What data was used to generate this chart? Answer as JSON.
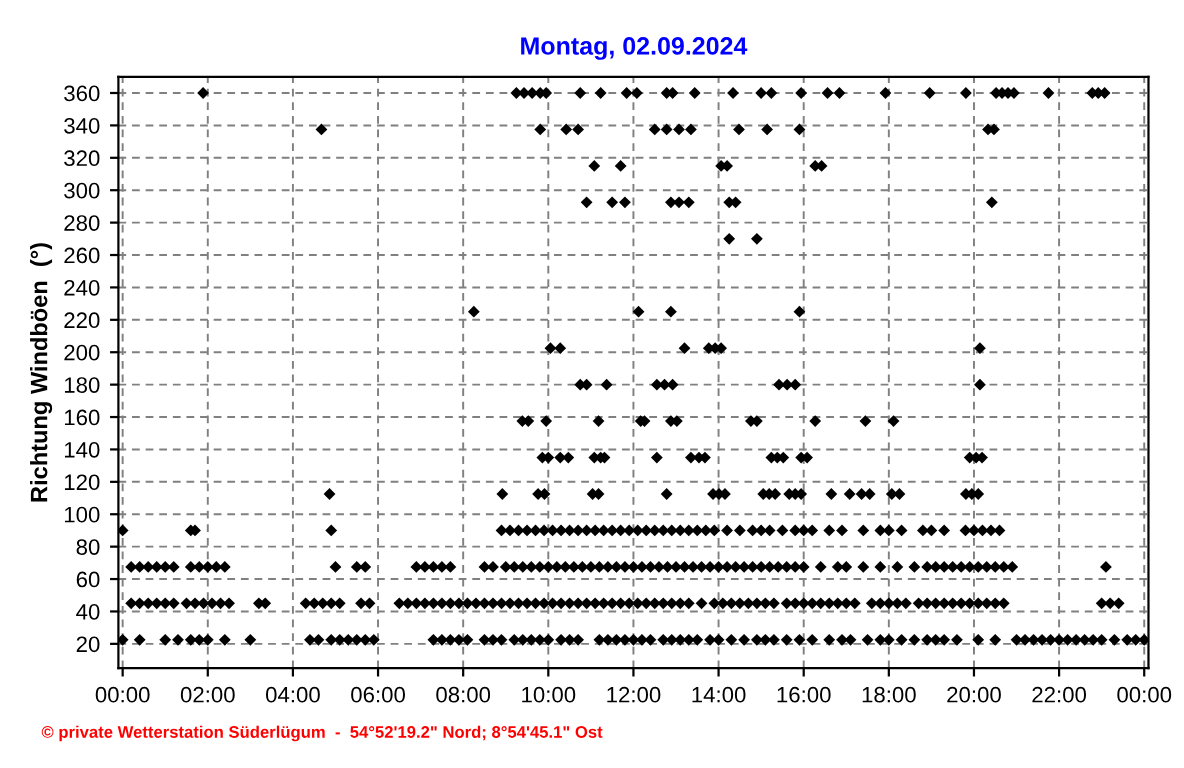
{
  "chart_data": {
    "type": "scatter",
    "title": "Montag, 02.09.2024",
    "ylabel": "Richtung Windböen  (°)",
    "annotations": [
      "© private Wetterstation Süderlügum  -  54°52'19.2\" Nord; 8°54'45.1\" Ost"
    ],
    "xlim": [
      -0.1,
      24.1
    ],
    "ylim": [
      5,
      370
    ],
    "xticks": [
      {
        "value": 0,
        "label": "00:00"
      },
      {
        "value": 2,
        "label": "02:00"
      },
      {
        "value": 4,
        "label": "04:00"
      },
      {
        "value": 6,
        "label": "06:00"
      },
      {
        "value": 8,
        "label": "08:00"
      },
      {
        "value": 10,
        "label": "10:00"
      },
      {
        "value": 12,
        "label": "12:00"
      },
      {
        "value": 14,
        "label": "14:00"
      },
      {
        "value": 16,
        "label": "16:00"
      },
      {
        "value": 18,
        "label": "18:00"
      },
      {
        "value": 20,
        "label": "20:00"
      },
      {
        "value": 22,
        "label": "22:00"
      },
      {
        "value": 24,
        "label": "00:00"
      }
    ],
    "yticks": [
      20,
      40,
      60,
      80,
      100,
      120,
      140,
      160,
      180,
      200,
      220,
      240,
      260,
      280,
      300,
      320,
      340,
      360
    ],
    "grid": true,
    "marker": "diamond",
    "series": [
      {
        "color": "#000000",
        "x": [
          1.89,
          9.25,
          9.43,
          9.62,
          9.81,
          9.95,
          10.75,
          11.23,
          11.84,
          12.08,
          12.78,
          12.92,
          13.44,
          14.34,
          15.0,
          15.24,
          15.94,
          16.56,
          16.84,
          17.92,
          18.96,
          19.81,
          20.52,
          20.66,
          20.8,
          20.94,
          21.75,
          22.78,
          22.92,
          23.07
        ],
        "values": [
          360,
          360,
          360,
          360,
          360,
          360,
          360,
          360,
          360,
          360,
          360,
          360,
          360,
          360,
          360,
          360,
          360,
          360,
          360,
          360,
          360,
          360,
          360,
          360,
          360,
          360,
          360,
          360,
          360,
          360
        ]
      },
      {
        "color": "#000000",
        "x": [
          4.67,
          9.81,
          10.42,
          10.7,
          12.5,
          12.78,
          13.07,
          13.35,
          14.48,
          15.14,
          15.9,
          20.33,
          20.47
        ],
        "values": [
          337.5,
          337.5,
          337.5,
          337.5,
          337.5,
          337.5,
          337.5,
          337.5,
          337.5,
          337.5,
          337.5,
          337.5,
          337.5
        ]
      },
      {
        "color": "#000000",
        "x": [
          11.08,
          11.7,
          14.06,
          14.2,
          16.27,
          16.42
        ],
        "values": [
          315,
          315,
          315,
          315,
          315,
          315
        ]
      },
      {
        "color": "#000000",
        "x": [
          10.9,
          11.5,
          11.8,
          12.88,
          13.07,
          13.3,
          14.25,
          14.4,
          20.42
        ],
        "values": [
          292.5,
          292.5,
          292.5,
          292.5,
          292.5,
          292.5,
          292.5,
          292.5,
          292.5
        ]
      },
      {
        "color": "#000000",
        "x": [
          14.25,
          14.9
        ],
        "values": [
          270,
          270
        ]
      },
      {
        "color": "#000000",
        "x": [
          8.25,
          12.12,
          12.88,
          15.9
        ],
        "values": [
          225,
          225,
          225,
          225
        ]
      },
      {
        "color": "#000000",
        "x": [
          10.05,
          10.28,
          13.2,
          13.77,
          13.92,
          14.06,
          20.14
        ],
        "values": [
          202.5,
          202.5,
          202.5,
          202.5,
          202.5,
          202.5,
          202.5
        ]
      },
      {
        "color": "#000000",
        "x": [
          10.75,
          10.9,
          11.37,
          12.55,
          12.73,
          12.92,
          15.42,
          15.61,
          15.8,
          20.14
        ],
        "values": [
          180,
          180,
          180,
          180,
          180,
          180,
          180,
          180,
          180,
          180
        ]
      },
      {
        "color": "#000000",
        "x": [
          9.39,
          9.53,
          9.95,
          11.18,
          12.17,
          12.26,
          12.88,
          13.02,
          14.76,
          14.9,
          16.27,
          17.45,
          18.11
        ],
        "values": [
          157.5,
          157.5,
          157.5,
          157.5,
          157.5,
          157.5,
          157.5,
          157.5,
          157.5,
          157.5,
          157.5,
          157.5,
          157.5
        ]
      },
      {
        "color": "#000000",
        "x": [
          9.86,
          10.0,
          10.28,
          10.47,
          11.08,
          11.23,
          11.32,
          12.55,
          13.35,
          13.54,
          13.68,
          15.24,
          15.38,
          15.52,
          15.94,
          16.08,
          19.9,
          20.05,
          20.19
        ],
        "values": [
          135,
          135,
          135,
          135,
          135,
          135,
          135,
          135,
          135,
          135,
          135,
          135,
          135,
          135,
          135,
          135,
          135,
          135,
          135
        ]
      },
      {
        "color": "#000000",
        "x": [
          4.86,
          8.92,
          9.76,
          9.91,
          11.04,
          11.18,
          12.78,
          13.87,
          14.01,
          14.15,
          15.05,
          15.19,
          15.33,
          15.66,
          15.8,
          15.94,
          16.65,
          17.08,
          17.36,
          17.55,
          18.07,
          18.25,
          19.81,
          19.95,
          20.1
        ],
        "values": [
          112.5,
          112.5,
          112.5,
          112.5,
          112.5,
          112.5,
          112.5,
          112.5,
          112.5,
          112.5,
          112.5,
          112.5,
          112.5,
          112.5,
          112.5,
          112.5,
          112.5,
          112.5,
          112.5,
          112.5,
          112.5,
          112.5,
          112.5,
          112.5,
          112.5
        ]
      },
      {
        "color": "#000000",
        "x": [
          0.0,
          1.6,
          1.7,
          4.9,
          8.9,
          9.1,
          9.3,
          9.5,
          9.7,
          9.9,
          10.1,
          10.3,
          10.5,
          10.7,
          10.9,
          11.1,
          11.3,
          11.5,
          11.7,
          11.9,
          12.1,
          12.3,
          12.5,
          12.7,
          12.9,
          13.1,
          13.3,
          13.5,
          13.7,
          13.9,
          14.2,
          14.5,
          14.8,
          15.0,
          15.2,
          15.5,
          15.8,
          16.0,
          16.2,
          16.6,
          16.9,
          17.4,
          17.8,
          18.0,
          18.3,
          18.8,
          19.0,
          19.3,
          19.8,
          20.0,
          20.2,
          20.4,
          20.6
        ],
        "values": [
          90,
          90,
          90,
          90,
          90,
          90,
          90,
          90,
          90,
          90,
          90,
          90,
          90,
          90,
          90,
          90,
          90,
          90,
          90,
          90,
          90,
          90,
          90,
          90,
          90,
          90,
          90,
          90,
          90,
          90,
          90,
          90,
          90,
          90,
          90,
          90,
          90,
          90,
          90,
          90,
          90,
          90,
          90,
          90,
          90,
          90,
          90,
          90,
          90,
          90,
          90,
          90,
          90
        ]
      },
      {
        "color": "#000000",
        "x": [
          0.2,
          0.4,
          0.6,
          0.8,
          1.0,
          1.2,
          1.6,
          1.8,
          2.0,
          2.2,
          2.4,
          5.0,
          5.5,
          5.7,
          6.9,
          7.1,
          7.3,
          7.5,
          7.7,
          8.5,
          8.7,
          9.0,
          9.2,
          9.4,
          9.6,
          9.8,
          10.0,
          10.2,
          10.4,
          10.6,
          10.8,
          11.0,
          11.2,
          11.4,
          11.6,
          11.8,
          12.0,
          12.2,
          12.4,
          12.6,
          12.8,
          13.0,
          13.2,
          13.4,
          13.6,
          13.8,
          14.0,
          14.2,
          14.4,
          14.6,
          14.8,
          15.0,
          15.2,
          15.4,
          15.6,
          15.8,
          16.0,
          16.4,
          16.8,
          17.0,
          17.4,
          17.8,
          18.2,
          18.6,
          18.9,
          19.1,
          19.3,
          19.5,
          19.7,
          19.9,
          20.1,
          20.3,
          20.5,
          20.7,
          20.9,
          23.1
        ],
        "values": [
          67.5,
          67.5,
          67.5,
          67.5,
          67.5,
          67.5,
          67.5,
          67.5,
          67.5,
          67.5,
          67.5,
          67.5,
          67.5,
          67.5,
          67.5,
          67.5,
          67.5,
          67.5,
          67.5,
          67.5,
          67.5,
          67.5,
          67.5,
          67.5,
          67.5,
          67.5,
          67.5,
          67.5,
          67.5,
          67.5,
          67.5,
          67.5,
          67.5,
          67.5,
          67.5,
          67.5,
          67.5,
          67.5,
          67.5,
          67.5,
          67.5,
          67.5,
          67.5,
          67.5,
          67.5,
          67.5,
          67.5,
          67.5,
          67.5,
          67.5,
          67.5,
          67.5,
          67.5,
          67.5,
          67.5,
          67.5,
          67.5,
          67.5,
          67.5,
          67.5,
          67.5,
          67.5,
          67.5,
          67.5,
          67.5,
          67.5,
          67.5,
          67.5,
          67.5,
          67.5,
          67.5,
          67.5,
          67.5,
          67.5,
          67.5,
          67.5
        ]
      },
      {
        "color": "#000000",
        "x": [
          0.2,
          0.4,
          0.6,
          0.8,
          1.0,
          1.2,
          1.5,
          1.7,
          1.9,
          2.1,
          2.3,
          2.5,
          3.2,
          3.35,
          4.3,
          4.5,
          4.7,
          4.9,
          5.1,
          5.6,
          5.8,
          6.5,
          6.7,
          6.9,
          7.1,
          7.3,
          7.5,
          7.7,
          7.9,
          8.1,
          8.3,
          8.5,
          8.7,
          8.9,
          9.1,
          9.3,
          9.5,
          9.7,
          9.9,
          10.1,
          10.3,
          10.5,
          10.7,
          10.9,
          11.1,
          11.3,
          11.5,
          11.7,
          11.9,
          12.1,
          12.3,
          12.5,
          12.7,
          12.9,
          13.1,
          13.3,
          13.6,
          13.9,
          14.1,
          14.3,
          14.5,
          14.7,
          14.9,
          15.1,
          15.3,
          15.6,
          15.8,
          16.0,
          16.2,
          16.4,
          16.6,
          16.8,
          17.0,
          17.2,
          17.6,
          17.8,
          18.0,
          18.2,
          18.4,
          18.7,
          18.9,
          19.1,
          19.3,
          19.5,
          19.7,
          19.9,
          20.1,
          20.3,
          20.5,
          20.7,
          23.0,
          23.2,
          23.4
        ],
        "values": [
          45,
          45,
          45,
          45,
          45,
          45,
          45,
          45,
          45,
          45,
          45,
          45,
          45,
          45,
          45,
          45,
          45,
          45,
          45,
          45,
          45,
          45,
          45,
          45,
          45,
          45,
          45,
          45,
          45,
          45,
          45,
          45,
          45,
          45,
          45,
          45,
          45,
          45,
          45,
          45,
          45,
          45,
          45,
          45,
          45,
          45,
          45,
          45,
          45,
          45,
          45,
          45,
          45,
          45,
          45,
          45,
          45,
          45,
          45,
          45,
          45,
          45,
          45,
          45,
          45,
          45,
          45,
          45,
          45,
          45,
          45,
          45,
          45,
          45,
          45,
          45,
          45,
          45,
          45,
          45,
          45,
          45,
          45,
          45,
          45,
          45,
          45,
          45,
          45,
          45,
          45,
          45,
          45
        ]
      },
      {
        "color": "#000000",
        "x": [
          0.0,
          0.4,
          1.0,
          1.3,
          1.6,
          1.8,
          2.0,
          2.4,
          3.0,
          4.4,
          4.6,
          4.9,
          5.1,
          5.3,
          5.5,
          5.7,
          5.9,
          7.3,
          7.5,
          7.7,
          7.9,
          8.1,
          8.5,
          8.7,
          8.9,
          9.2,
          9.4,
          9.6,
          9.8,
          10.0,
          10.3,
          10.5,
          10.7,
          11.2,
          11.4,
          11.6,
          11.8,
          12.0,
          12.2,
          12.4,
          12.7,
          12.9,
          13.1,
          13.3,
          13.5,
          13.8,
          14.0,
          14.3,
          14.6,
          14.9,
          15.1,
          15.3,
          15.6,
          15.9,
          16.2,
          16.6,
          16.9,
          17.1,
          17.5,
          17.8,
          18.0,
          18.3,
          18.6,
          18.9,
          19.1,
          19.3,
          19.6,
          20.1,
          20.5,
          21.0,
          21.2,
          21.4,
          21.6,
          21.8,
          22.0,
          22.2,
          22.4,
          22.6,
          22.8,
          23.0,
          23.3,
          23.6,
          23.8,
          24.0
        ],
        "values": [
          22.5,
          22.5,
          22.5,
          22.5,
          22.5,
          22.5,
          22.5,
          22.5,
          22.5,
          22.5,
          22.5,
          22.5,
          22.5,
          22.5,
          22.5,
          22.5,
          22.5,
          22.5,
          22.5,
          22.5,
          22.5,
          22.5,
          22.5,
          22.5,
          22.5,
          22.5,
          22.5,
          22.5,
          22.5,
          22.5,
          22.5,
          22.5,
          22.5,
          22.5,
          22.5,
          22.5,
          22.5,
          22.5,
          22.5,
          22.5,
          22.5,
          22.5,
          22.5,
          22.5,
          22.5,
          22.5,
          22.5,
          22.5,
          22.5,
          22.5,
          22.5,
          22.5,
          22.5,
          22.5,
          22.5,
          22.5,
          22.5,
          22.5,
          22.5,
          22.5,
          22.5,
          22.5,
          22.5,
          22.5,
          22.5,
          22.5,
          22.5,
          22.5,
          22.5,
          22.5,
          22.5,
          22.5,
          22.5,
          22.5,
          22.5,
          22.5,
          22.5,
          22.5,
          22.5,
          22.5,
          22.5,
          22.5,
          22.5,
          22.5
        ]
      }
    ]
  }
}
